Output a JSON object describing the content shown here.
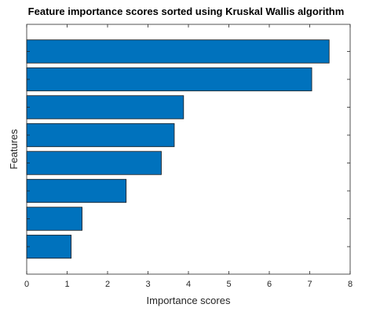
{
  "chart_data": {
    "type": "bar",
    "orientation": "horizontal",
    "title": "Feature importance scores sorted using Kruskal Wallis algorithm",
    "xlabel": "Importance scores",
    "ylabel": "Features",
    "xlim": [
      0,
      8
    ],
    "xticks": [
      "0",
      "1",
      "2",
      "3",
      "4",
      "5",
      "6",
      "7",
      "8"
    ],
    "grid": false,
    "bar_color": "#0072BD",
    "bar_edge_color": "#1a1a1a",
    "values": [
      7.48,
      7.05,
      3.88,
      3.65,
      3.33,
      2.46,
      1.37,
      1.1
    ]
  }
}
